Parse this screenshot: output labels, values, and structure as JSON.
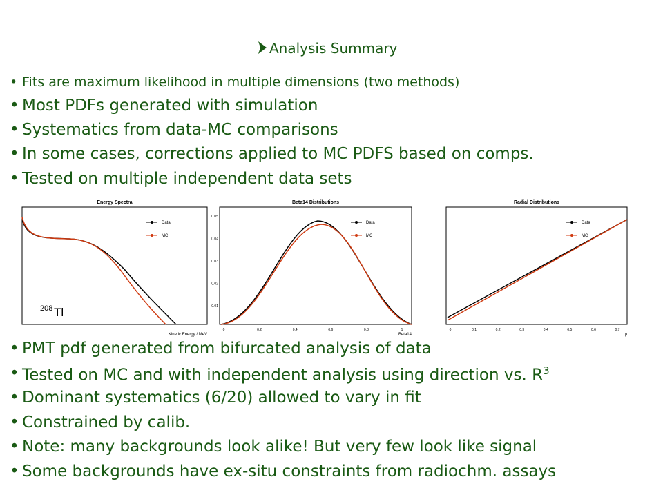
{
  "heading": "Analysis Summary",
  "bullets_top": [
    {
      "text": "Fits are maximum likelihood in multiple dimensions (two methods)"
    },
    {
      "text": "Most PDFs generated with simulation"
    },
    {
      "text": "Systematics from data-MC comparisons"
    },
    {
      "text": "In some cases, corrections applied to MC PDFS based on comps."
    },
    {
      "text": "Tested on multiple independent data sets"
    }
  ],
  "plots": [
    {
      "title": "Energy Spectra",
      "legend": [
        "Data",
        "MC"
      ],
      "xlabel": "Kinetic Energy / MeV",
      "annotation": {
        "sup": "208",
        "text": "Tl"
      }
    },
    {
      "title": "Beta14 Distributions",
      "legend": [
        "Data",
        "MC"
      ],
      "xlabel": "Beta14",
      "yticks": [
        "0.01",
        "0.02",
        "0.03",
        "0.04",
        "0.05"
      ],
      "xticks": [
        "0",
        "0.2",
        "0.4",
        "0.6",
        "0.8",
        "1"
      ]
    },
    {
      "title": "Radial Distributions",
      "legend": [
        "Data",
        "MC"
      ],
      "xlabel": "ρ",
      "xticks": [
        "0",
        "0.1",
        "0.2",
        "0.3",
        "0.4",
        "0.5",
        "0.6",
        "0.7"
      ]
    }
  ],
  "bullets_bottom": [
    {
      "text": "PMT pdf generated from bifurcated analysis of data"
    },
    {
      "text": "Tested on MC and with independent analysis using direction vs. R",
      "sup": "3"
    },
    {
      "text": "Dominant systematics (6/20) allowed to vary in fit"
    },
    {
      "text": "Constrained by calib."
    },
    {
      "text": "Note: many backgrounds look alike! But very few look like signal"
    },
    {
      "text": "Some backgrounds have ex-situ constraints from radiochm. assays"
    }
  ]
}
